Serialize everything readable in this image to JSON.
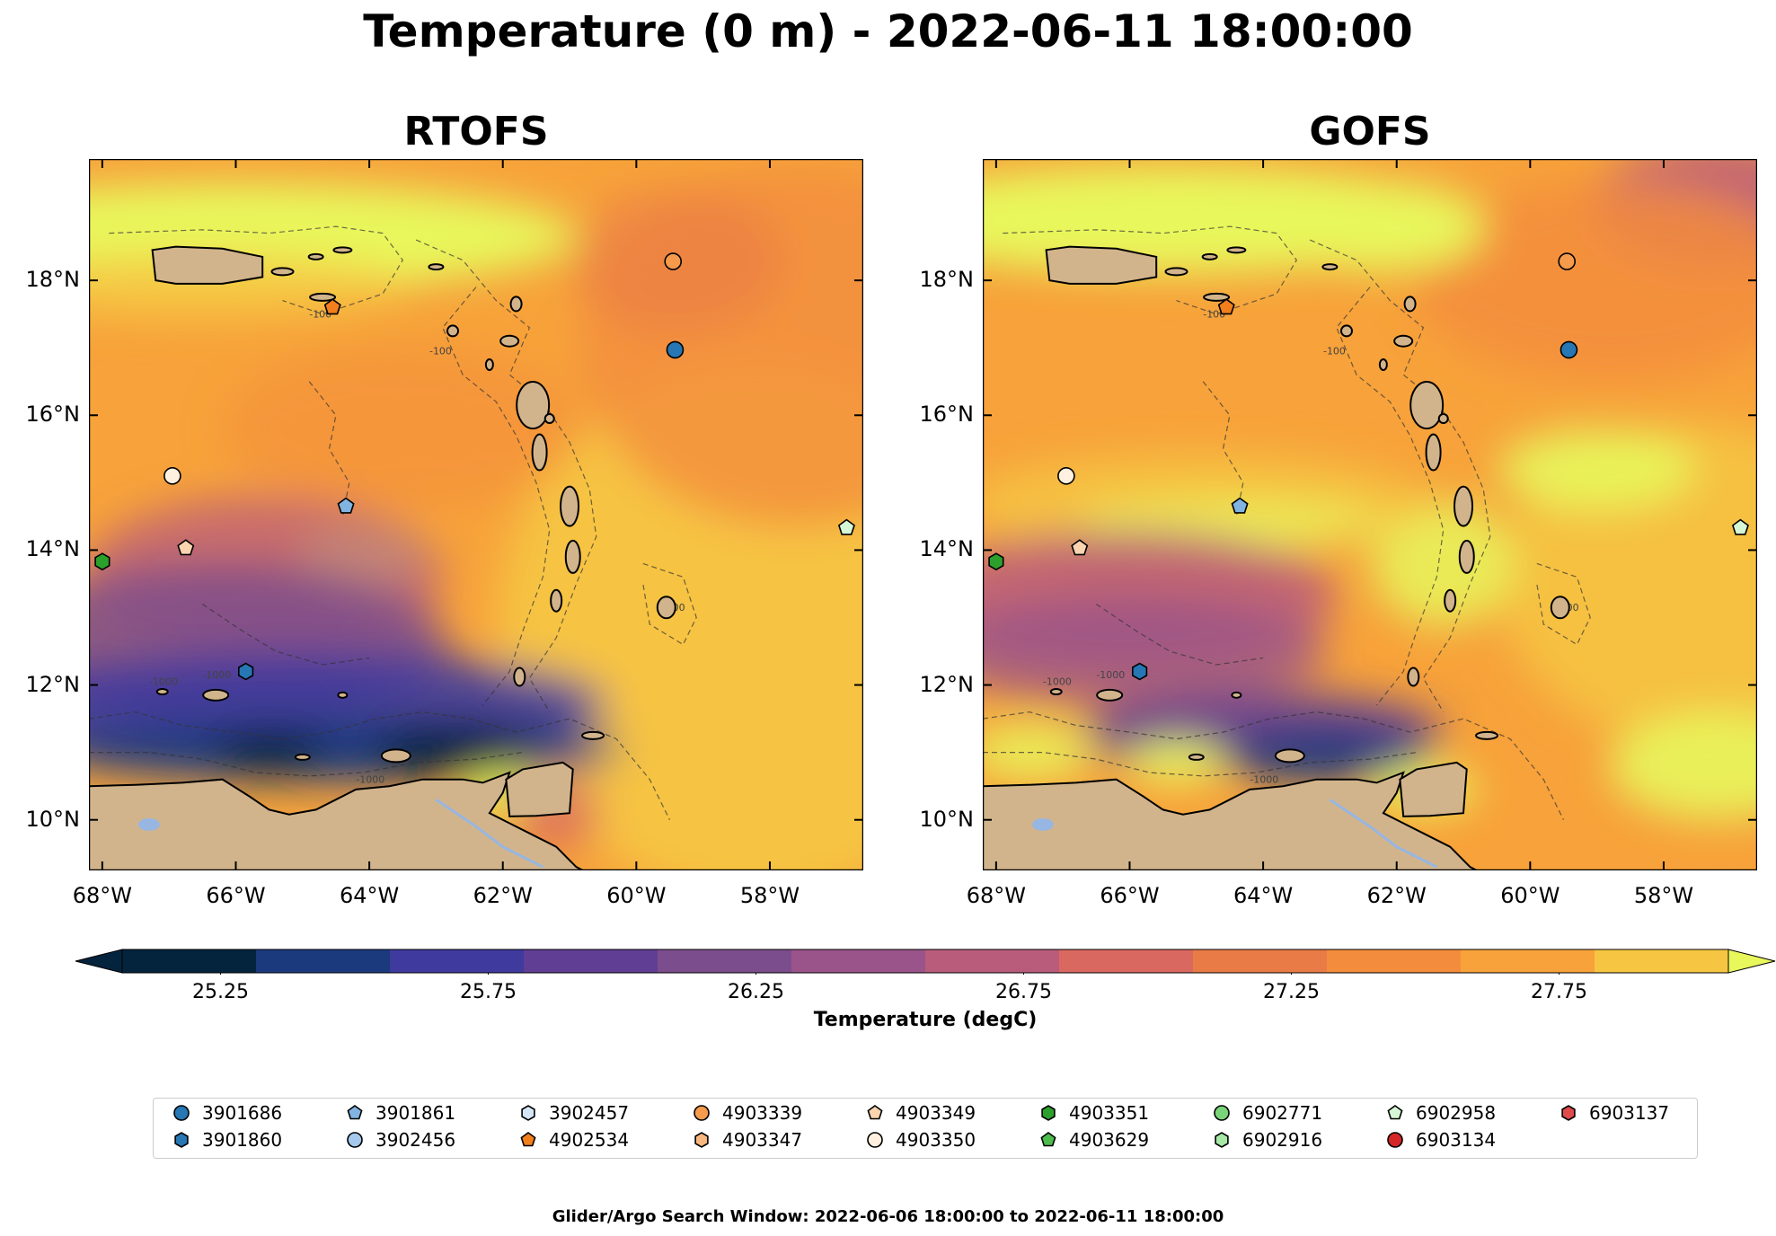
{
  "title": "Temperature (0 m) - 2022-06-11 18:00:00",
  "panels": [
    {
      "title": "RTOFS"
    },
    {
      "title": "GOFS"
    }
  ],
  "map": {
    "lon_range": [
      -68.2,
      -56.6
    ],
    "lat_range": [
      9.25,
      19.8
    ],
    "lon_ticks": [
      "68°W",
      "66°W",
      "64°W",
      "62°W",
      "60°W",
      "58°W"
    ],
    "lat_ticks": [
      "10°N",
      "12°N",
      "14°N",
      "16°N",
      "18°N"
    ],
    "contour_labels": [
      "-100",
      "-1000"
    ],
    "land_color": "#d2b48c",
    "lake_color": "#97b6e1"
  },
  "colorbar": {
    "label": "Temperature (degC)",
    "tick_labels": [
      "25.25",
      "25.75",
      "26.25",
      "26.75",
      "27.25",
      "27.75"
    ],
    "colors": [
      "#04233d",
      "#1b3a7e",
      "#3f3a9d",
      "#603e94",
      "#7c4d8c",
      "#9a548a",
      "#b95c7c",
      "#d96960",
      "#e97b47",
      "#f38d3d",
      "#f7a23a",
      "#f6c643"
    ],
    "over_color": "#e8f75c",
    "under_color": "#04233d"
  },
  "legend": {
    "items": [
      {
        "id": "3901686",
        "color": "#2777b4",
        "shape": "circle"
      },
      {
        "id": "3901860",
        "color": "#2777b4",
        "shape": "hexagon"
      },
      {
        "id": "3901861",
        "color": "#82b4e1",
        "shape": "pentagon"
      },
      {
        "id": "3902456",
        "color": "#a5c9ec",
        "shape": "circle"
      },
      {
        "id": "3902457",
        "color": "#d5e6f6",
        "shape": "hexagon"
      },
      {
        "id": "4902534",
        "color": "#f07f1c",
        "shape": "pentagon"
      },
      {
        "id": "4903339",
        "color": "#f59b4b",
        "shape": "circle"
      },
      {
        "id": "4903347",
        "color": "#f8b77e",
        "shape": "hexagon"
      },
      {
        "id": "4903349",
        "color": "#fbd4b0",
        "shape": "pentagon"
      },
      {
        "id": "4903350",
        "color": "#fff0e0",
        "shape": "circle"
      },
      {
        "id": "4903351",
        "color": "#2ca02c",
        "shape": "hexagon"
      },
      {
        "id": "4903629",
        "color": "#4cbc4c",
        "shape": "pentagon"
      },
      {
        "id": "6902771",
        "color": "#79d479",
        "shape": "circle"
      },
      {
        "id": "6902916",
        "color": "#a7e8a7",
        "shape": "hexagon"
      },
      {
        "id": "6902958",
        "color": "#d5f7d5",
        "shape": "pentagon"
      },
      {
        "id": "6903134",
        "color": "#d62728",
        "shape": "circle"
      },
      {
        "id": "6903137",
        "color": "#e04a4a",
        "shape": "hexagon"
      }
    ]
  },
  "floats": [
    {
      "lon": -59.45,
      "lat": 18.28,
      "color": "#f59b4b",
      "shape": "circle"
    },
    {
      "lon": -59.42,
      "lat": 16.97,
      "color": "#2777b4",
      "shape": "circle"
    },
    {
      "lon": -64.55,
      "lat": 17.6,
      "color": "#f07f1c",
      "shape": "pentagon"
    },
    {
      "lon": -66.95,
      "lat": 15.1,
      "color": "#fff0e0",
      "shape": "circle"
    },
    {
      "lon": -64.35,
      "lat": 14.65,
      "color": "#82b4e1",
      "shape": "pentagon"
    },
    {
      "lon": -66.75,
      "lat": 14.03,
      "color": "#fbd4b0",
      "shape": "pentagon"
    },
    {
      "lon": -68.0,
      "lat": 13.83,
      "color": "#2ca02c",
      "shape": "hexagon"
    },
    {
      "lon": -65.85,
      "lat": 12.2,
      "color": "#2777b4",
      "shape": "hexagon"
    },
    {
      "lon": -56.85,
      "lat": 14.33,
      "color": "#d5f7d5",
      "shape": "pentagon"
    }
  ],
  "footer": "Glider/Argo Search Window: 2022-06-06 18:00:00 to 2022-06-11 18:00:00"
}
